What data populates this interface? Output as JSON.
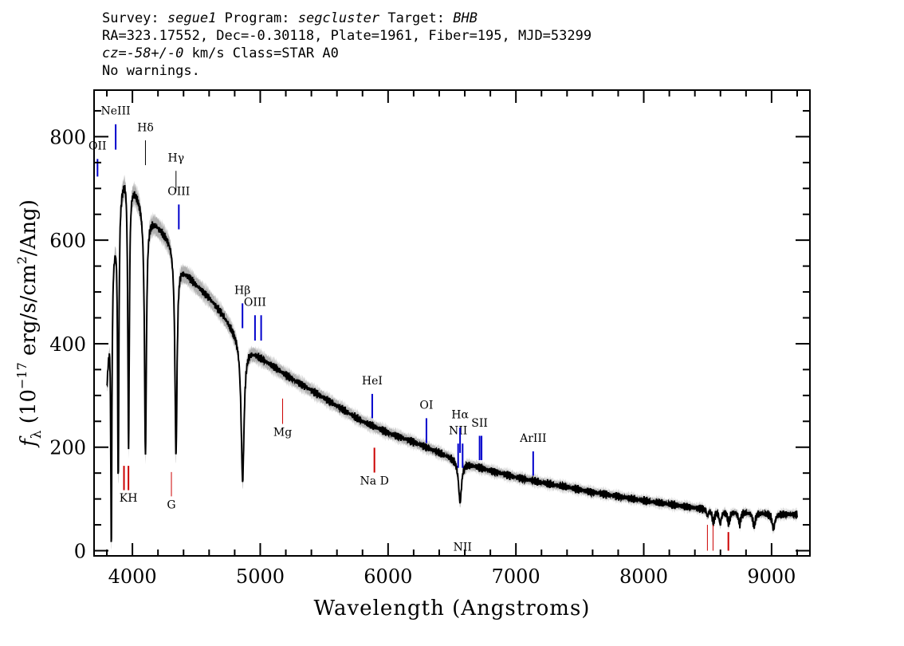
{
  "header": {
    "survey_label": "Survey:",
    "survey": "segue1",
    "program_label": "Program:",
    "program": "segcluster",
    "target_label": "Target:",
    "target": "BHB",
    "line2": "RA=323.17552, Dec=-0.30118, Plate=1961, Fiber=195, MJD=53299",
    "cz_label": "cz=",
    "cz_value": "-58+/-0",
    "cz_rest": " km/s Class=STAR A0",
    "line4": "No warnings."
  },
  "chart_data": {
    "type": "line",
    "xlabel": "Wavelength (Angstroms)",
    "ylabel_prefix": "f",
    "ylabel_sub": "λ",
    "ylabel_main": " (10",
    "ylabel_exp": "−17",
    "ylabel_mid": " erg/s/cm",
    "ylabel_exp2": "2",
    "ylabel_end": "/Ang)",
    "xlim": [
      3700,
      9300
    ],
    "ylim": [
      -10,
      890
    ],
    "xticks": [
      4000,
      5000,
      6000,
      7000,
      8000,
      9000
    ],
    "yticks": [
      0,
      200,
      400,
      600,
      800
    ],
    "continuum": [
      [
        3800,
        330
      ],
      [
        3850,
        580
      ],
      [
        3900,
        700
      ],
      [
        3950,
        745
      ],
      [
        4000,
        715
      ],
      [
        4100,
        660
      ],
      [
        4200,
        630
      ],
      [
        4300,
        600
      ],
      [
        4400,
        545
      ],
      [
        4500,
        515
      ],
      [
        4600,
        490
      ],
      [
        4700,
        460
      ],
      [
        4800,
        425
      ],
      [
        4900,
        395
      ],
      [
        5000,
        375
      ],
      [
        5200,
        340
      ],
      [
        5400,
        310
      ],
      [
        5600,
        280
      ],
      [
        5800,
        250
      ],
      [
        6000,
        228
      ],
      [
        6200,
        210
      ],
      [
        6400,
        190
      ],
      [
        6600,
        170
      ],
      [
        6800,
        155
      ],
      [
        7000,
        142
      ],
      [
        7200,
        132
      ],
      [
        7400,
        123
      ],
      [
        7600,
        113
      ],
      [
        7800,
        105
      ],
      [
        8000,
        97
      ],
      [
        8200,
        90
      ],
      [
        8400,
        83
      ],
      [
        8600,
        78
      ],
      [
        8800,
        75
      ],
      [
        9000,
        72
      ],
      [
        9200,
        70
      ]
    ],
    "absorption": [
      {
        "center": 3835,
        "depth": 500,
        "width": 5
      },
      {
        "center": 3889,
        "depth": 530,
        "width": 6
      },
      {
        "center": 3970,
        "depth": 530,
        "width": 7
      },
      {
        "center": 4102,
        "depth": 470,
        "width": 9
      },
      {
        "center": 4341,
        "depth": 390,
        "width": 10
      },
      {
        "center": 4862,
        "depth": 270,
        "width": 14
      },
      {
        "center": 6563,
        "depth": 80,
        "width": 14
      },
      {
        "center": 8498,
        "depth": 12,
        "width": 8
      },
      {
        "center": 8545,
        "depth": 25,
        "width": 10
      },
      {
        "center": 8598,
        "depth": 25,
        "width": 10
      },
      {
        "center": 8665,
        "depth": 25,
        "width": 10
      },
      {
        "center": 8750,
        "depth": 25,
        "width": 10
      },
      {
        "center": 8863,
        "depth": 27,
        "width": 11
      },
      {
        "center": 9015,
        "depth": 30,
        "width": 12
      }
    ],
    "emission_markers": [
      {
        "label": "OII",
        "wave": 3727,
        "y0": 723,
        "y1": 757,
        "label_y": 775,
        "color": "#0000cc",
        "lw": 2
      },
      {
        "label": "NeIII",
        "wave": 3869,
        "y0": 775,
        "y1": 824,
        "label_y": 843,
        "color": "#0000cc",
        "lw": 2
      },
      {
        "label": "Hδ",
        "wave": 4102,
        "y0": 745,
        "y1": 793,
        "label_y": 811,
        "color": "#000000",
        "lw": 1
      },
      {
        "label": "Hγ",
        "wave": 4341,
        "y0": 695,
        "y1": 734,
        "label_y": 752,
        "color": "#000000",
        "lw": 1
      },
      {
        "label": "OIII",
        "wave": 4363,
        "y0": 621,
        "y1": 669,
        "label_y": 687,
        "color": "#0000cc",
        "lw": 2
      },
      {
        "label": "Hβ",
        "wave": 4861,
        "y0": 430,
        "y1": 478,
        "label_y": 496,
        "color": "#0000cc",
        "lw": 2
      },
      {
        "label": "OIII",
        "wave": 4959,
        "y0": 406,
        "y1": 455,
        "label_y": 473,
        "color": "#0000cc",
        "lw": 2
      },
      {
        "label": "",
        "wave": 5007,
        "y0": 406,
        "y1": 455,
        "label_y": 0,
        "color": "#0000cc",
        "lw": 2
      },
      {
        "label": "HeI",
        "wave": 5876,
        "y0": 256,
        "y1": 303,
        "label_y": 321,
        "color": "#0000cc",
        "lw": 2
      },
      {
        "label": "OI",
        "wave": 6300,
        "y0": 208,
        "y1": 256,
        "label_y": 274,
        "color": "#0000cc",
        "lw": 2
      },
      {
        "label": "NII",
        "wave": 6548,
        "y0": 160,
        "y1": 207,
        "label_y": 225,
        "color": "#0000cc",
        "lw": 2
      },
      {
        "label": "Hα",
        "wave": 6563,
        "y0": 189,
        "y1": 238,
        "label_y": 256,
        "color": "#0000cc",
        "lw": 2
      },
      {
        "label": "NII",
        "wave": 6583,
        "y0": 160,
        "y1": 207,
        "label_y": 0,
        "color": "#0000cc",
        "lw": 2
      },
      {
        "label": "SII",
        "wave": 6716,
        "y0": 175,
        "y1": 222,
        "label_y": 240,
        "color": "#0000cc",
        "lw": 2
      },
      {
        "label": "",
        "wave": 6731,
        "y0": 175,
        "y1": 222,
        "label_y": 0,
        "color": "#0000cc",
        "lw": 2
      },
      {
        "label": "ArIII",
        "wave": 7135,
        "y0": 145,
        "y1": 192,
        "label_y": 210,
        "color": "#0000cc",
        "lw": 2
      }
    ],
    "absorption_markers": [
      {
        "label": "",
        "wave": 3934,
        "y0": 117,
        "y1": 164,
        "label_y": 0,
        "color": "#cc0000",
        "lw": 2
      },
      {
        "label": "KH",
        "wave": 3969,
        "y0": 117,
        "y1": 164,
        "label_y": 95,
        "color": "#cc0000",
        "lw": 2
      },
      {
        "label": "G",
        "wave": 4305,
        "y0": 105,
        "y1": 152,
        "label_y": 82,
        "color": "#cc0000",
        "lw": 1
      },
      {
        "label": "Mg",
        "wave": 5175,
        "y0": 245,
        "y1": 294,
        "label_y": 222,
        "color": "#cc0000",
        "lw": 1
      },
      {
        "label": "Na D",
        "wave": 5893,
        "y0": 151,
        "y1": 199,
        "label_y": 128,
        "color": "#cc0000",
        "lw": 2
      },
      {
        "label": "",
        "wave": 8498,
        "y0": 0,
        "y1": 50,
        "label_y": 0,
        "color": "#cc0000",
        "lw": 1
      },
      {
        "label": "",
        "wave": 8542,
        "y0": 0,
        "y1": 50,
        "label_y": 0,
        "color": "#cc0000",
        "lw": 1
      },
      {
        "label": "",
        "wave": 8662,
        "y0": 0,
        "y1": 36,
        "label_y": 0,
        "color": "#cc0000",
        "lw": 2
      }
    ],
    "colors": {
      "spectrum": "#000000",
      "error_band": "#b0b0b0",
      "emission": "#0000cc",
      "absorption": "#cc0000"
    }
  }
}
